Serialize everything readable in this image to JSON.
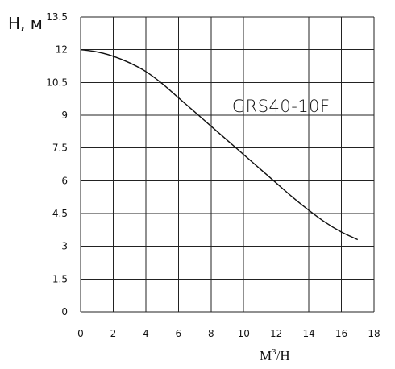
{
  "chart_data": {
    "type": "line",
    "title": "",
    "ylabel": "H, м",
    "xlabel": "M",
    "xlabel_sup": "3",
    "xlabel_suffix": "/H",
    "xlim": [
      0,
      18
    ],
    "ylim": [
      0,
      13.5
    ],
    "x_ticks": [
      "0",
      "2",
      "4",
      "6",
      "8",
      "10",
      "12",
      "14",
      "16",
      "18"
    ],
    "y_ticks": [
      "0",
      "1.5",
      "3",
      "4.5",
      "6",
      "7.5",
      "9",
      "10.5",
      "12",
      "13.5"
    ],
    "grid": true,
    "series": [
      {
        "name": "GRS40-10F",
        "x": [
          0,
          1,
          2,
          3,
          4,
          5,
          6,
          7,
          8,
          9,
          10,
          11,
          12,
          13,
          14,
          15,
          16,
          17
        ],
        "y": [
          12.0,
          11.9,
          11.7,
          11.4,
          11.0,
          10.45,
          9.8,
          9.15,
          8.5,
          7.85,
          7.2,
          6.55,
          5.9,
          5.25,
          4.65,
          4.1,
          3.65,
          3.3
        ]
      }
    ],
    "annotations": [
      {
        "text": "GRS40-10F",
        "x": 12.3,
        "y": 9.4
      }
    ],
    "colors": {
      "line": "#111111",
      "grid": "#222222"
    }
  }
}
